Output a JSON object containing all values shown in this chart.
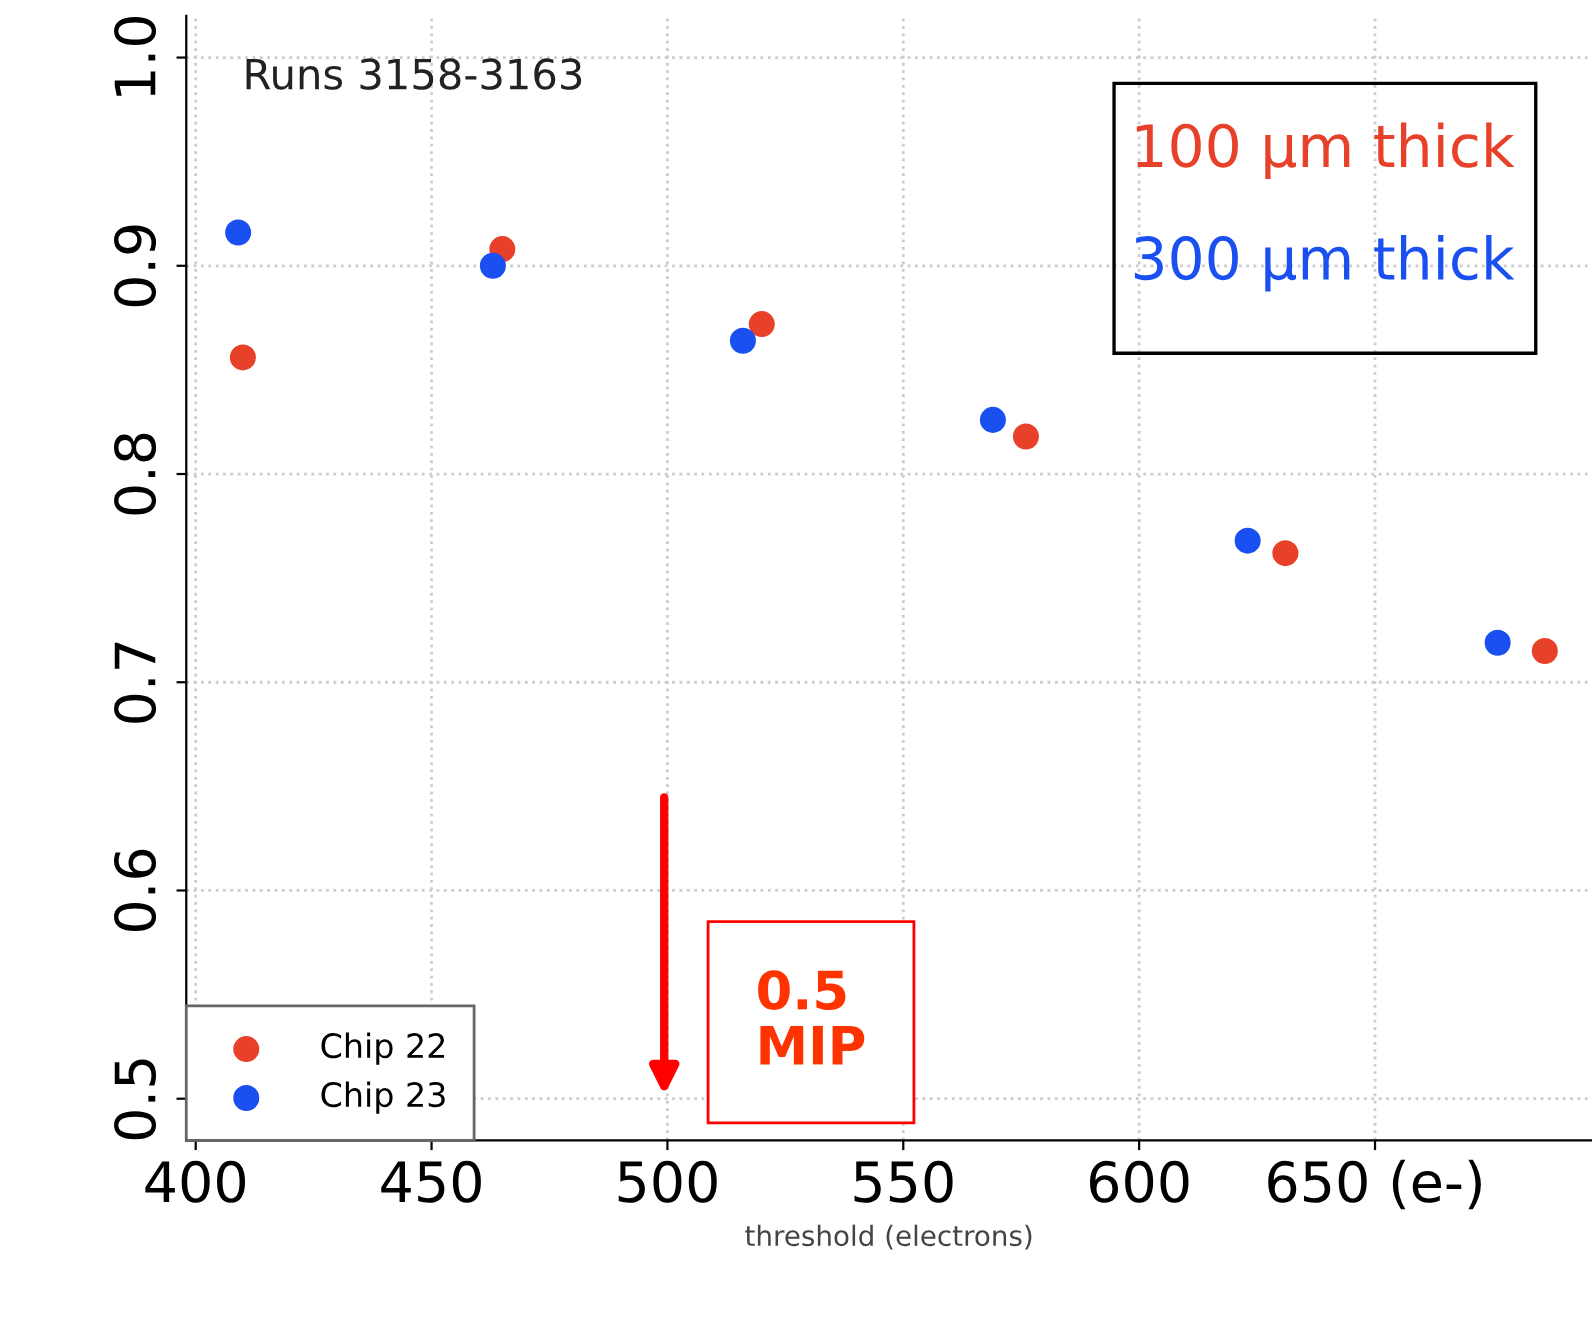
{
  "chart_data": {
    "type": "scatter",
    "xlabel": "threshold (electrons)",
    "xlim": [
      398,
      696
    ],
    "ylim": [
      0.48,
      1.02
    ],
    "xticks": [
      400,
      450,
      500,
      550,
      600,
      {
        "value": 650,
        "label": "650 (e-)"
      }
    ],
    "yticks": [
      0.5,
      0.6,
      0.7,
      0.8,
      0.9,
      {
        "value": 1.0,
        "label": "1.0"
      }
    ],
    "grid": true,
    "legend": "bottom left",
    "marker": "circle",
    "series": [
      {
        "name": "Chip 22",
        "color": "#e8412a",
        "x": [
          410,
          465,
          520,
          576,
          631,
          686
        ],
        "values": [
          0.856,
          0.908,
          0.872,
          0.818,
          0.762,
          0.715
        ]
      },
      {
        "name": "Chip 23",
        "color": "#1a4ff0",
        "x": [
          409,
          463,
          516,
          569,
          623,
          676
        ],
        "values": [
          0.916,
          0.9,
          0.864,
          0.826,
          0.768,
          0.719
        ]
      }
    ],
    "annotations": [
      "Runs 3158-3163",
      "100 µm thick",
      "300 µm thick",
      "0.5\nMIP"
    ]
  }
}
